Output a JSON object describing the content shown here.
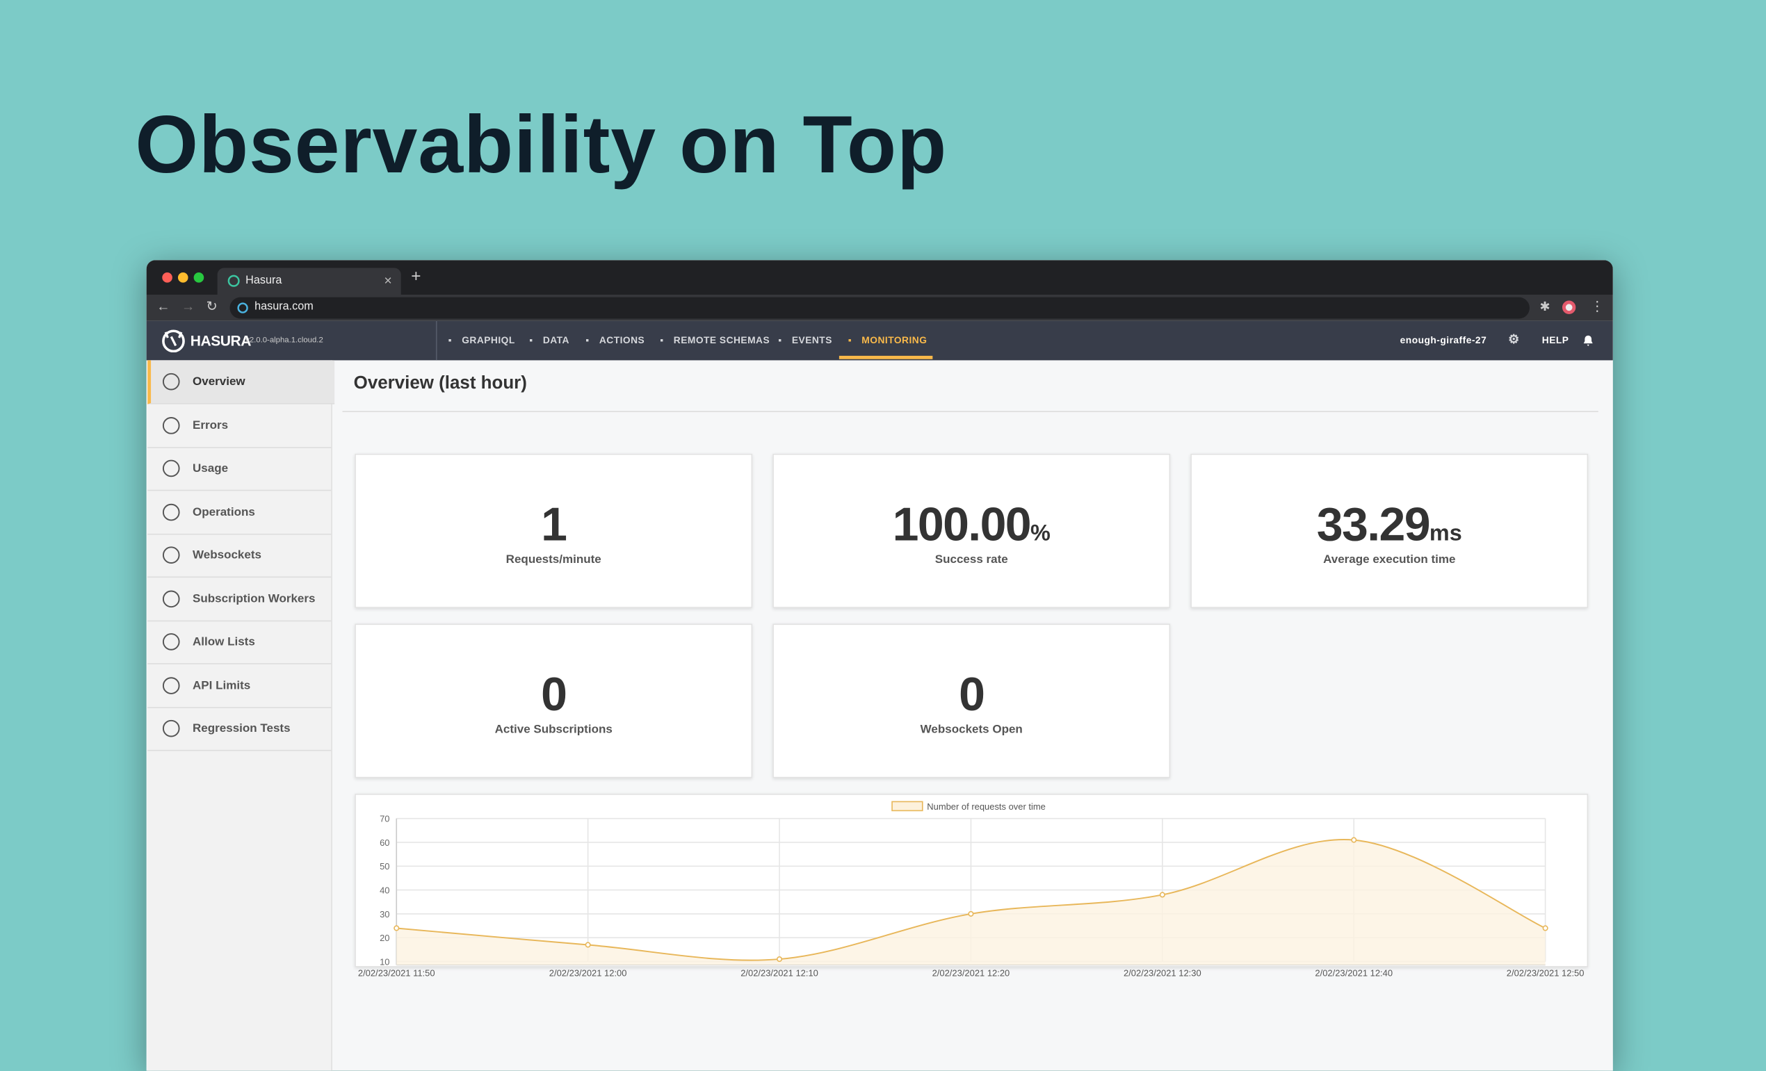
{
  "heading": "Observability on Top",
  "browser": {
    "tab_title": "Hasura",
    "url": "hasura.com"
  },
  "header": {
    "logo": "HASURA",
    "version": "v2.0.0-alpha.1.cloud.2",
    "nav": [
      "GRAPHIQL",
      "DATA",
      "ACTIONS",
      "REMOTE SCHEMAS",
      "EVENTS",
      "MONITORING"
    ],
    "project": "enough-giraffe-27",
    "help": "HELP"
  },
  "sidebar": [
    "Overview",
    "Errors",
    "Usage",
    "Operations",
    "Websockets",
    "Subscription Workers",
    "Allow Lists",
    "API Limits",
    "Regression Tests"
  ],
  "page_title": "Overview (last hour)",
  "stats": [
    {
      "value": "1",
      "label": "Requests/minute"
    },
    {
      "value": "100.00",
      "unit": "%",
      "label": "Success rate"
    },
    {
      "value": "33.29",
      "unit": "ms",
      "label": "Average execution time"
    },
    {
      "value": "0",
      "label": "Active Subscriptions"
    },
    {
      "value": "0",
      "label": "Websockets Open"
    }
  ],
  "chart": {
    "type": "line",
    "legend": "Number of requests over time",
    "categories": [
      "2/02/23/2021 11:50",
      "2/02/23/2021 12:00",
      "2/02/23/2021 12:10",
      "2/02/23/2021 12:20",
      "2/02/23/2021 12:30",
      "2/02/23/2021 12:40",
      "2/02/23/2021 12:50"
    ],
    "values": [
      24,
      17,
      11,
      30,
      38,
      61,
      24
    ],
    "ylim": [
      10,
      70
    ],
    "yticks": [
      10,
      20,
      30,
      40,
      50,
      60,
      70
    ],
    "color": "#e8b75a",
    "grid": true
  }
}
